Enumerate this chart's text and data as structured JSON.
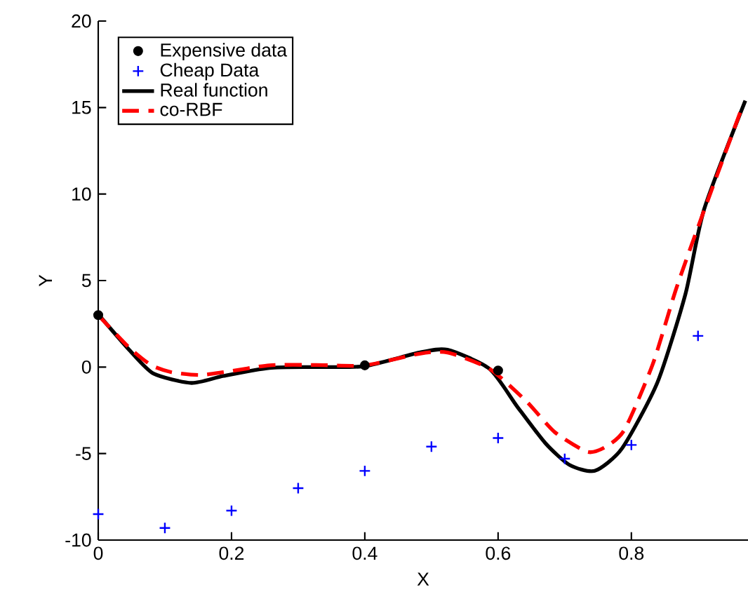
{
  "chart_data": {
    "type": "scatter",
    "xlabel": "X",
    "ylabel": "Y",
    "xlim": [
      0,
      0.975
    ],
    "ylim": [
      -10,
      20
    ],
    "xticks": [
      0,
      0.2,
      0.4,
      0.6,
      0.8
    ],
    "yticks": [
      -10,
      -5,
      0,
      5,
      10,
      15,
      20
    ],
    "grid": false,
    "legend": "top left",
    "series": [
      {
        "name": "Expensive data",
        "marker": "circle",
        "color": "#000000",
        "x": [
          0,
          0.4,
          0.6
        ],
        "values": [
          3.0,
          0.1,
          -0.2
        ]
      },
      {
        "name": "Cheap Data",
        "marker": "cross",
        "color": "#0000ff",
        "x": [
          0,
          0.1,
          0.2,
          0.3,
          0.4,
          0.5,
          0.6,
          0.7,
          0.8,
          0.9
        ],
        "values": [
          -8.5,
          -9.3,
          -8.3,
          -7.0,
          -6.0,
          -4.6,
          -4.1,
          -5.3,
          -4.5,
          1.8
        ]
      },
      {
        "name": "Real function",
        "type": "line",
        "line_style": "solid",
        "color": "#000000",
        "x": [
          0,
          0.047,
          0.083,
          0.14,
          0.188,
          0.257,
          0.327,
          0.4,
          0.482,
          0.524,
          0.587,
          0.629,
          0.671,
          0.707,
          0.745,
          0.786,
          0.839,
          0.881,
          0.909,
          0.971
        ],
        "values": [
          3.05,
          0.97,
          -0.38,
          -0.92,
          -0.51,
          -0.05,
          0.0,
          0.05,
          0.84,
          1.0,
          -0.1,
          -2.3,
          -4.4,
          -5.65,
          -6.0,
          -4.7,
          -0.9,
          4.2,
          9.1,
          15.4
        ]
      },
      {
        "name": "co-RBF",
        "type": "line",
        "line_style": "dashed",
        "color": "#ff0000",
        "x": [
          0,
          0.047,
          0.08,
          0.11,
          0.151,
          0.188,
          0.257,
          0.327,
          0.4,
          0.482,
          0.524,
          0.587,
          0.643,
          0.685,
          0.734,
          0.762,
          0.79,
          0.832,
          0.867,
          0.902,
          0.966
        ],
        "values": [
          3.0,
          1.1,
          0.1,
          -0.3,
          -0.46,
          -0.3,
          0.1,
          0.12,
          0.1,
          0.77,
          0.84,
          -0.1,
          -2.0,
          -3.76,
          -4.9,
          -4.6,
          -3.6,
          0.16,
          4.5,
          8.3,
          15.0
        ]
      }
    ]
  }
}
